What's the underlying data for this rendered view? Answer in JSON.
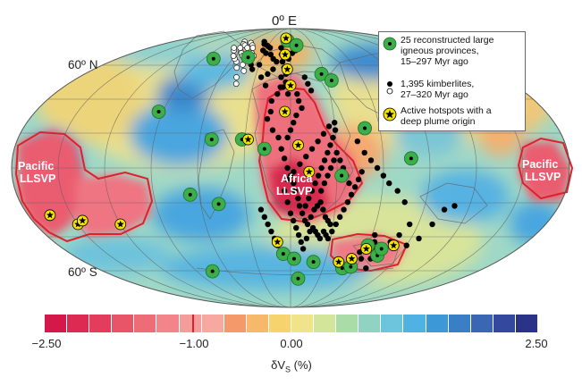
{
  "labels": {
    "top_meridian": "0º E",
    "lat_north": "60º N",
    "lat_south": "60º S",
    "pacific_llsvp_line1": "Pacific",
    "pacific_llsvp_line2": "LLSVP",
    "africa_llsvp_line1": "Africa",
    "africa_llsvp_line2": "LLSVP"
  },
  "legend": {
    "items": [
      {
        "icon": "green-lip-icon",
        "text": "25 reconstructed large\nigneous provinces,\n15–297 Myr ago"
      },
      {
        "icon": "kimberlite-dots-icon",
        "text": "1,395 kimberlites,\n27–320 Myr ago"
      },
      {
        "icon": "hotspot-star-icon",
        "text": "Active hotspots with a\ndeep plume origin"
      }
    ]
  },
  "colorbar": {
    "min": -2.5,
    "max": 2.5,
    "ticks": [
      "−2.50",
      "−1.00",
      "0.00",
      "2.50"
    ],
    "tick_values": [
      -2.5,
      -1.0,
      0.0,
      2.5
    ],
    "label_prefix": "δV",
    "label_sub": "S",
    "label_suffix": " (%)",
    "colors": [
      "#d4184a",
      "#dc2a52",
      "#e23d5c",
      "#e85468",
      "#ee6b78",
      "#f2848a",
      "#f59c9c",
      "#f7a8a0",
      "#f49a6a",
      "#f6b86a",
      "#f6d36c",
      "#efe48a",
      "#d2e59a",
      "#a9dca6",
      "#8fd3c2",
      "#6cc5dd",
      "#4fb2e3",
      "#3c99d6",
      "#3a7fc6",
      "#3a66b4",
      "#34499e",
      "#2a3388"
    ]
  },
  "colors": {
    "lip_green": "#3cae4a",
    "kimberlite": "#000000",
    "hotspot_yellow": "#f5e400",
    "llsvp_outline": "#e0202a"
  },
  "lips": [
    [
      -5,
      76
    ],
    [
      8,
      72
    ],
    [
      -45,
      63
    ],
    [
      27,
      52
    ],
    [
      -80,
      62
    ],
    [
      33,
      -4
    ],
    [
      50,
      21
    ],
    [
      72,
      -48
    ],
    [
      60,
      -42
    ],
    [
      -93,
      30
    ],
    [
      -75,
      -58
    ],
    [
      -6,
      -47
    ],
    [
      3,
      -50
    ],
    [
      8,
      -63
    ],
    [
      20,
      -52
    ],
    [
      48,
      -56
    ],
    [
      55,
      -55
    ],
    [
      72,
      -44
    ],
    [
      -52,
      15
    ],
    [
      -66,
      -14
    ],
    [
      -48,
      -19
    ],
    [
      -32,
      15
    ],
    [
      34,
      48
    ],
    [
      78,
      5
    ],
    [
      -17,
      10
    ]
  ],
  "kimberlites": [
    [
      -40,
      75
    ],
    [
      -37,
      73
    ],
    [
      -32,
      72
    ],
    [
      -29,
      71
    ],
    [
      -26,
      70
    ],
    [
      -33,
      68
    ],
    [
      -28,
      66
    ],
    [
      -22,
      65
    ],
    [
      -18,
      62
    ],
    [
      -14,
      60
    ],
    [
      -38,
      58
    ],
    [
      -35,
      55
    ],
    [
      -25,
      50
    ],
    [
      -20,
      45
    ],
    [
      -40,
      60
    ],
    [
      -30,
      58
    ],
    [
      -12,
      70
    ],
    [
      -10,
      65
    ],
    [
      -8,
      60
    ],
    [
      -6,
      56
    ],
    [
      -4,
      52
    ],
    [
      -4,
      47
    ],
    [
      -8,
      44
    ],
    [
      -10,
      40
    ],
    [
      -14,
      36
    ],
    [
      -14,
      30
    ],
    [
      -16,
      26
    ],
    [
      -12,
      20
    ],
    [
      -8,
      16
    ],
    [
      -6,
      10
    ],
    [
      -4,
      5
    ],
    [
      -2,
      0
    ],
    [
      0,
      -4
    ],
    [
      2,
      -8
    ],
    [
      3,
      -12
    ],
    [
      5,
      -16
    ],
    [
      6,
      -20
    ],
    [
      8,
      -24
    ],
    [
      10,
      -28
    ],
    [
      12,
      -30
    ],
    [
      14,
      -26
    ],
    [
      16,
      -22
    ],
    [
      18,
      -20
    ],
    [
      20,
      -18
    ],
    [
      22,
      -22
    ],
    [
      24,
      -26
    ],
    [
      26,
      -28
    ],
    [
      28,
      -30
    ],
    [
      10,
      -20
    ],
    [
      12,
      -16
    ],
    [
      14,
      -12
    ],
    [
      16,
      -8
    ],
    [
      18,
      -4
    ],
    [
      20,
      0
    ],
    [
      22,
      4
    ],
    [
      24,
      8
    ],
    [
      26,
      12
    ],
    [
      28,
      16
    ],
    [
      30,
      20
    ],
    [
      30,
      24
    ],
    [
      26,
      22
    ],
    [
      22,
      18
    ],
    [
      18,
      14
    ],
    [
      14,
      10
    ],
    [
      10,
      6
    ],
    [
      6,
      2
    ],
    [
      2,
      -2
    ],
    [
      -2,
      -6
    ],
    [
      -4,
      -12
    ],
    [
      -2,
      -18
    ],
    [
      0,
      -24
    ],
    [
      2,
      -28
    ],
    [
      4,
      -32
    ],
    [
      6,
      -36
    ],
    [
      8,
      -40
    ],
    [
      10,
      -44
    ],
    [
      12,
      -38
    ],
    [
      14,
      -34
    ],
    [
      16,
      -32
    ],
    [
      18,
      -34
    ],
    [
      20,
      -36
    ],
    [
      22,
      -38
    ],
    [
      24,
      -34
    ],
    [
      26,
      -36
    ],
    [
      28,
      -38
    ],
    [
      30,
      -34
    ],
    [
      32,
      -30
    ],
    [
      34,
      -26
    ],
    [
      36,
      -22
    ],
    [
      38,
      -18
    ],
    [
      40,
      -14
    ],
    [
      42,
      -10
    ],
    [
      44,
      -6
    ],
    [
      46,
      -2
    ],
    [
      38,
      -8
    ],
    [
      36,
      -4
    ],
    [
      34,
      0
    ],
    [
      32,
      4
    ],
    [
      30,
      8
    ],
    [
      28,
      4
    ],
    [
      26,
      0
    ],
    [
      24,
      -4
    ],
    [
      22,
      -8
    ],
    [
      20,
      -12
    ],
    [
      5,
      40
    ],
    [
      6,
      36
    ],
    [
      8,
      32
    ],
    [
      4,
      28
    ],
    [
      2,
      24
    ],
    [
      0,
      20
    ],
    [
      -2,
      16
    ],
    [
      12,
      50
    ],
    [
      14,
      46
    ],
    [
      16,
      42
    ],
    [
      -20,
      -22
    ],
    [
      -18,
      -26
    ],
    [
      -16,
      -30
    ],
    [
      -14,
      -34
    ],
    [
      -12,
      -38
    ],
    [
      -10,
      -42
    ],
    [
      58,
      -40
    ],
    [
      62,
      -36
    ],
    [
      64,
      -40
    ],
    [
      66,
      -44
    ],
    [
      60,
      -50
    ],
    [
      56,
      -46
    ],
    [
      68,
      -50
    ],
    [
      70,
      -56
    ],
    [
      76,
      -40
    ],
    [
      80,
      -36
    ],
    [
      84,
      -30
    ],
    [
      100,
      -30
    ],
    [
      96,
      -38
    ],
    [
      90,
      -42
    ],
    [
      104,
      -22
    ],
    [
      110,
      -20
    ],
    [
      44,
      14
    ],
    [
      48,
      8
    ],
    [
      52,
      4
    ],
    [
      56,
      0
    ],
    [
      60,
      -4
    ],
    [
      64,
      -8
    ],
    [
      70,
      -12
    ],
    [
      76,
      -18
    ],
    [
      -2,
      62
    ],
    [
      2,
      66
    ],
    [
      6,
      68
    ],
    [
      -16,
      55
    ],
    [
      -20,
      52
    ],
    [
      -8,
      50
    ],
    [
      -6,
      44
    ],
    [
      -2,
      40
    ]
  ],
  "kimberlites_white": [
    [
      -70,
      75
    ],
    [
      -66,
      73
    ],
    [
      -62,
      72
    ],
    [
      -58,
      74
    ],
    [
      -55,
      70
    ],
    [
      -52,
      72
    ],
    [
      -48,
      70
    ],
    [
      -60,
      68
    ],
    [
      -56,
      66
    ],
    [
      -52,
      64
    ],
    [
      -48,
      62
    ],
    [
      -46,
      58
    ],
    [
      -50,
      56
    ],
    [
      -54,
      60
    ],
    [
      -44,
      66
    ],
    [
      -40,
      64
    ],
    [
      -64,
      70
    ],
    [
      -68,
      68
    ],
    [
      -72,
      70
    ],
    [
      -46,
      50
    ],
    [
      -44,
      46
    ],
    [
      -42,
      54
    ],
    [
      -58,
      62
    ],
    [
      -62,
      64
    ]
  ],
  "hotspots": [
    [
      -8,
      78
    ],
    [
      -6,
      65
    ],
    [
      -3,
      55
    ],
    [
      0,
      45
    ],
    [
      -4,
      30
    ],
    [
      5,
      12
    ],
    [
      12,
      -2
    ],
    [
      -28,
      15
    ],
    [
      -165,
      -25
    ],
    [
      -150,
      -30
    ],
    [
      -145,
      -28
    ],
    [
      -120,
      -30
    ],
    [
      60,
      -44
    ],
    [
      52,
      -50
    ],
    [
      -10,
      -40
    ],
    [
      42,
      -52
    ],
    [
      80,
      -42
    ]
  ]
}
